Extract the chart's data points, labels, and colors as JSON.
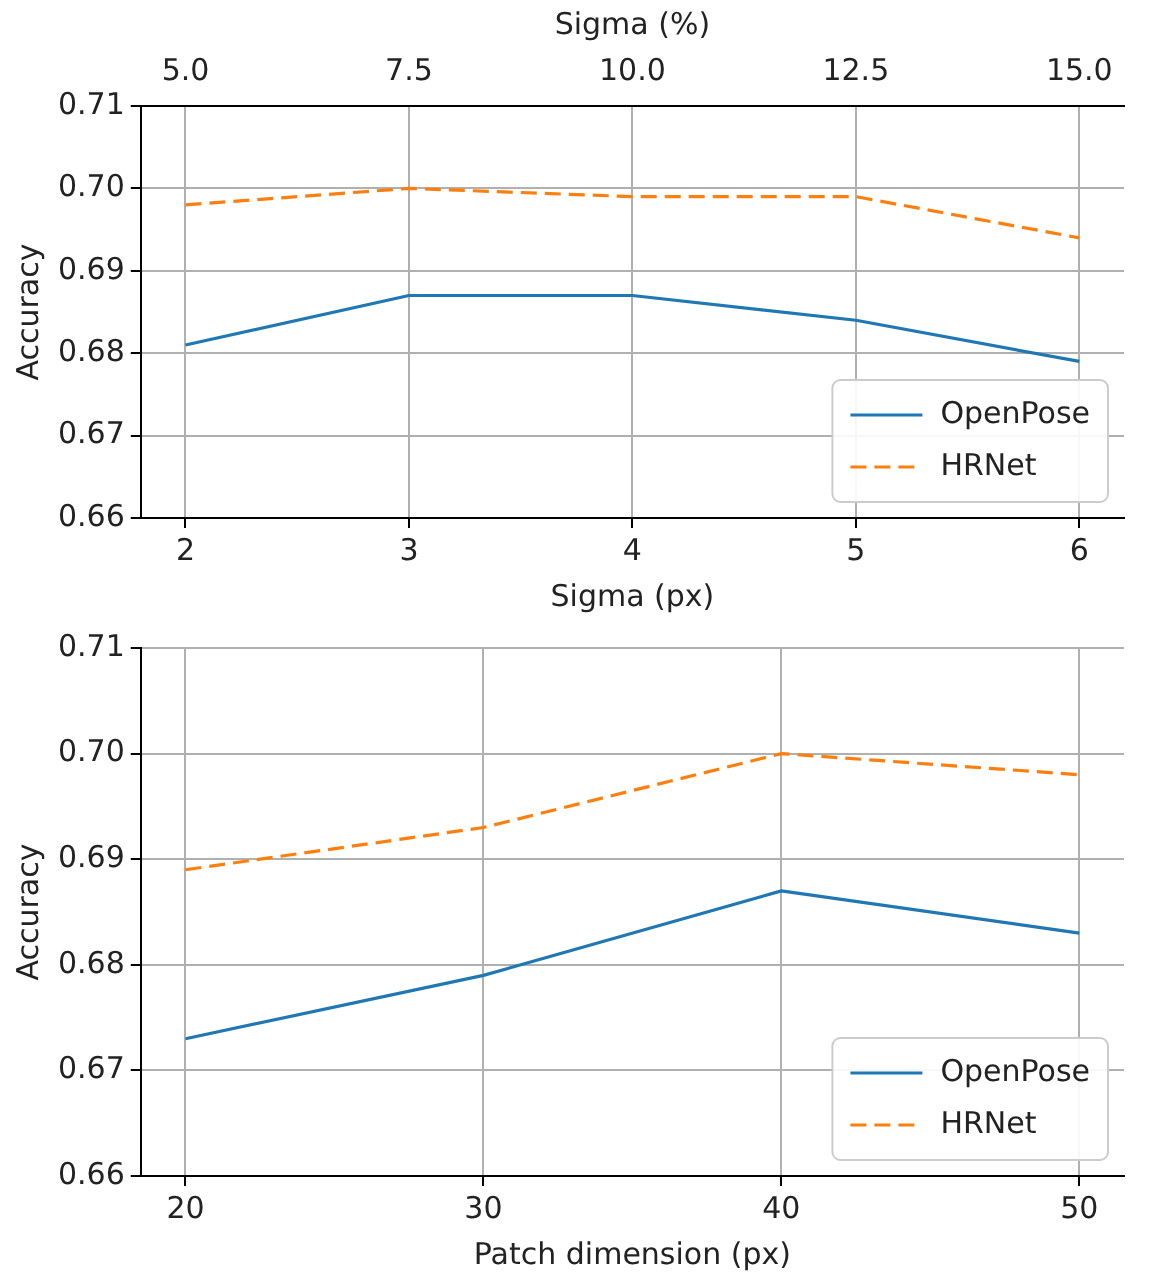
{
  "chart_data": [
    {
      "type": "line",
      "xlabel": "Sigma (px)",
      "ylabel": "Accuracy",
      "x2label": "Sigma (%)",
      "x": [
        2,
        3,
        4,
        5,
        6
      ],
      "series": [
        {
          "name": "OpenPose",
          "color": "#1f77b4",
          "line_style": "solid",
          "values": [
            0.681,
            0.687,
            0.687,
            0.684,
            0.679
          ]
        },
        {
          "name": "HRNet",
          "color": "#ff7f0e",
          "line_style": "dashed",
          "values": [
            0.698,
            0.7,
            0.699,
            0.699,
            0.694
          ]
        }
      ],
      "xlim": [
        1.8,
        6.2
      ],
      "xticks": [
        2,
        3,
        4,
        5,
        6
      ],
      "x2lim": [
        4.5,
        15.5
      ],
      "x2ticks": [
        {
          "value": 5,
          "label": "5.0"
        },
        {
          "value": 7.5,
          "label": "7.5"
        },
        {
          "value": 10,
          "label": "10.0"
        },
        {
          "value": 12.5,
          "label": "12.5"
        },
        {
          "value": 15,
          "label": "15.0"
        }
      ],
      "ylim": [
        0.66,
        0.71
      ],
      "yticks": [
        {
          "value": 0.66,
          "label": "0.66"
        },
        {
          "value": 0.67,
          "label": "0.67"
        },
        {
          "value": 0.68,
          "label": "0.68"
        },
        {
          "value": 0.69,
          "label": "0.69"
        },
        {
          "value": 0.7,
          "label": "0.70"
        },
        {
          "value": 0.71,
          "label": "0.71"
        }
      ],
      "grid": true,
      "legend": "bottom right",
      "marker": "none"
    },
    {
      "type": "line",
      "xlabel": "Patch dimension (px)",
      "ylabel": "Accuracy",
      "x": [
        20,
        30,
        40,
        50
      ],
      "series": [
        {
          "name": "OpenPose",
          "color": "#1f77b4",
          "line_style": "solid",
          "values": [
            0.673,
            0.679,
            0.687,
            0.683
          ]
        },
        {
          "name": "HRNet",
          "color": "#ff7f0e",
          "line_style": "dashed",
          "values": [
            0.689,
            0.693,
            0.7,
            0.698
          ]
        }
      ],
      "xlim": [
        18.5,
        51.5
      ],
      "xticks": [
        20,
        30,
        40,
        50
      ],
      "ylim": [
        0.66,
        0.71
      ],
      "yticks": [
        {
          "value": 0.66,
          "label": "0.66"
        },
        {
          "value": 0.67,
          "label": "0.67"
        },
        {
          "value": 0.68,
          "label": "0.68"
        },
        {
          "value": 0.69,
          "label": "0.69"
        },
        {
          "value": 0.7,
          "label": "0.70"
        },
        {
          "value": 0.71,
          "label": "0.71"
        }
      ],
      "grid": true,
      "legend": "bottom right",
      "marker": "none"
    }
  ]
}
